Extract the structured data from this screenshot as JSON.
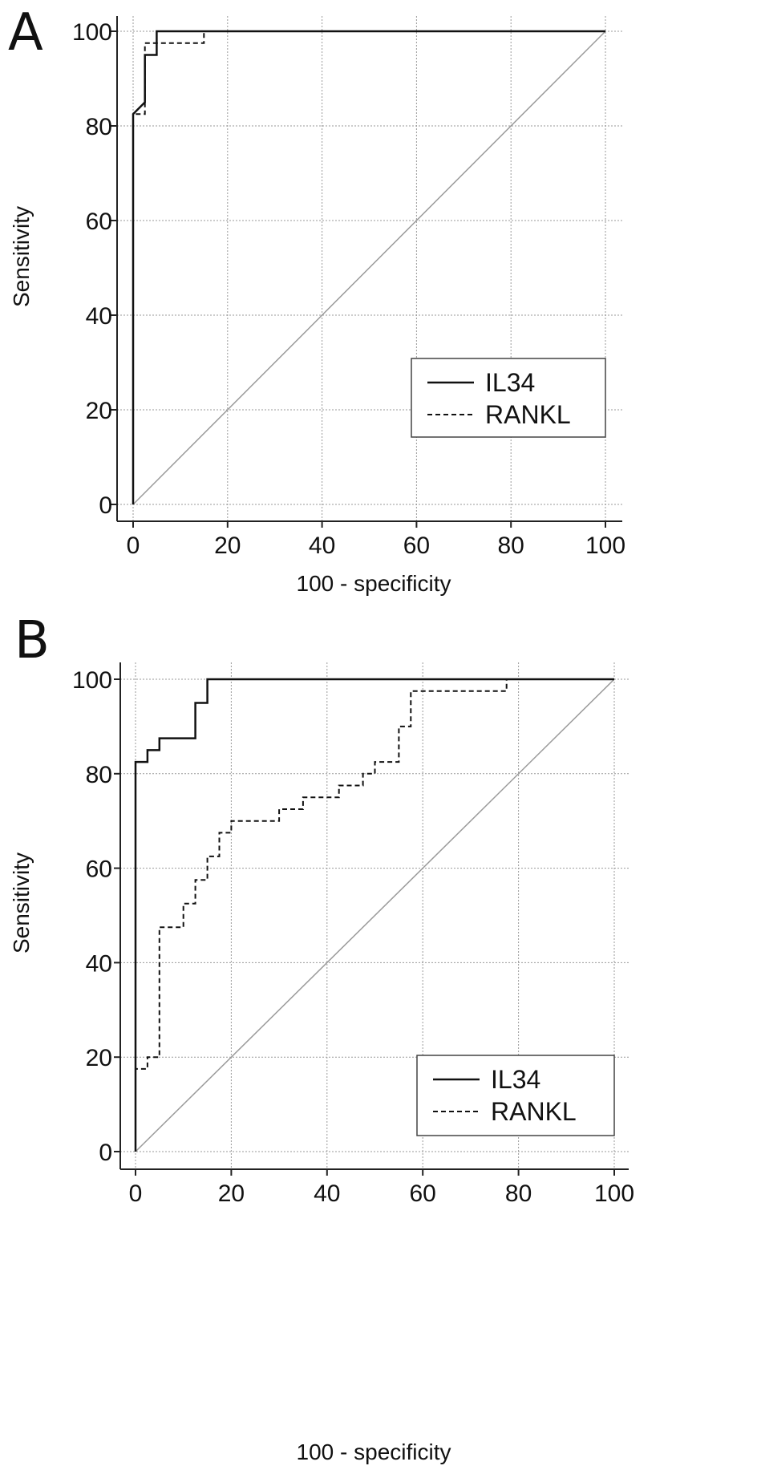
{
  "chart_data": [
    {
      "type": "line",
      "panel_label": "A",
      "title": "",
      "xlabel": "100 - specificity",
      "ylabel": "Sensitivity",
      "xlim": [
        0,
        100
      ],
      "ylim": [
        0,
        100
      ],
      "x_ticks": [
        "0",
        "20",
        "40",
        "60",
        "80",
        "100"
      ],
      "y_ticks": [
        "0",
        "20",
        "40",
        "60",
        "80",
        "100"
      ],
      "grid": true,
      "legend_position": "bottom-right",
      "reference_line": {
        "x": [
          0,
          100
        ],
        "y": [
          0,
          100
        ]
      },
      "series": [
        {
          "name": "IL34",
          "style": "solid",
          "x": [
            0,
            0,
            2.5,
            2.5,
            5,
            5,
            100
          ],
          "y": [
            0,
            82.5,
            85,
            95,
            95,
            100,
            100
          ]
        },
        {
          "name": "RANKL",
          "style": "dashed",
          "x": [
            0,
            0,
            2.5,
            2.5,
            15,
            15,
            100
          ],
          "y": [
            0,
            82.5,
            82.5,
            97.5,
            97.5,
            100,
            100
          ]
        }
      ]
    },
    {
      "type": "line",
      "panel_label": "B",
      "title": "",
      "xlabel": "100 - specificity",
      "ylabel": "Sensitivity",
      "xlim": [
        0,
        100
      ],
      "ylim": [
        0,
        100
      ],
      "x_ticks": [
        "0",
        "20",
        "40",
        "60",
        "80",
        "100"
      ],
      "y_ticks": [
        "0",
        "20",
        "40",
        "60",
        "80",
        "100"
      ],
      "grid": true,
      "legend_position": "bottom-right",
      "reference_line": {
        "x": [
          0,
          100
        ],
        "y": [
          0,
          100
        ]
      },
      "series": [
        {
          "name": "IL34",
          "style": "solid",
          "x": [
            0,
            0,
            2.5,
            2.5,
            5,
            5,
            12.5,
            12.5,
            15,
            15,
            100
          ],
          "y": [
            0,
            82.5,
            82.5,
            85,
            85,
            87.5,
            87.5,
            95,
            95,
            100,
            100
          ]
        },
        {
          "name": "RANKL",
          "style": "dashed",
          "x": [
            0,
            0,
            2.5,
            2.5,
            5,
            5,
            10,
            10,
            12.5,
            12.5,
            15,
            15,
            17.5,
            17.5,
            20,
            20,
            30,
            30,
            35,
            35,
            42.5,
            42.5,
            47.5,
            47.5,
            50,
            50,
            55,
            55,
            57.5,
            57.5,
            77.5,
            77.5,
            100
          ],
          "y": [
            0,
            17.5,
            17.5,
            20,
            20,
            47.5,
            47.5,
            52.5,
            52.5,
            57.5,
            57.5,
            62.5,
            62.5,
            67.5,
            67.5,
            70,
            70,
            72.5,
            72.5,
            75,
            75,
            77.5,
            77.5,
            80,
            80,
            82.5,
            82.5,
            90,
            90,
            97.5,
            97.5,
            100,
            100
          ]
        }
      ]
    }
  ]
}
